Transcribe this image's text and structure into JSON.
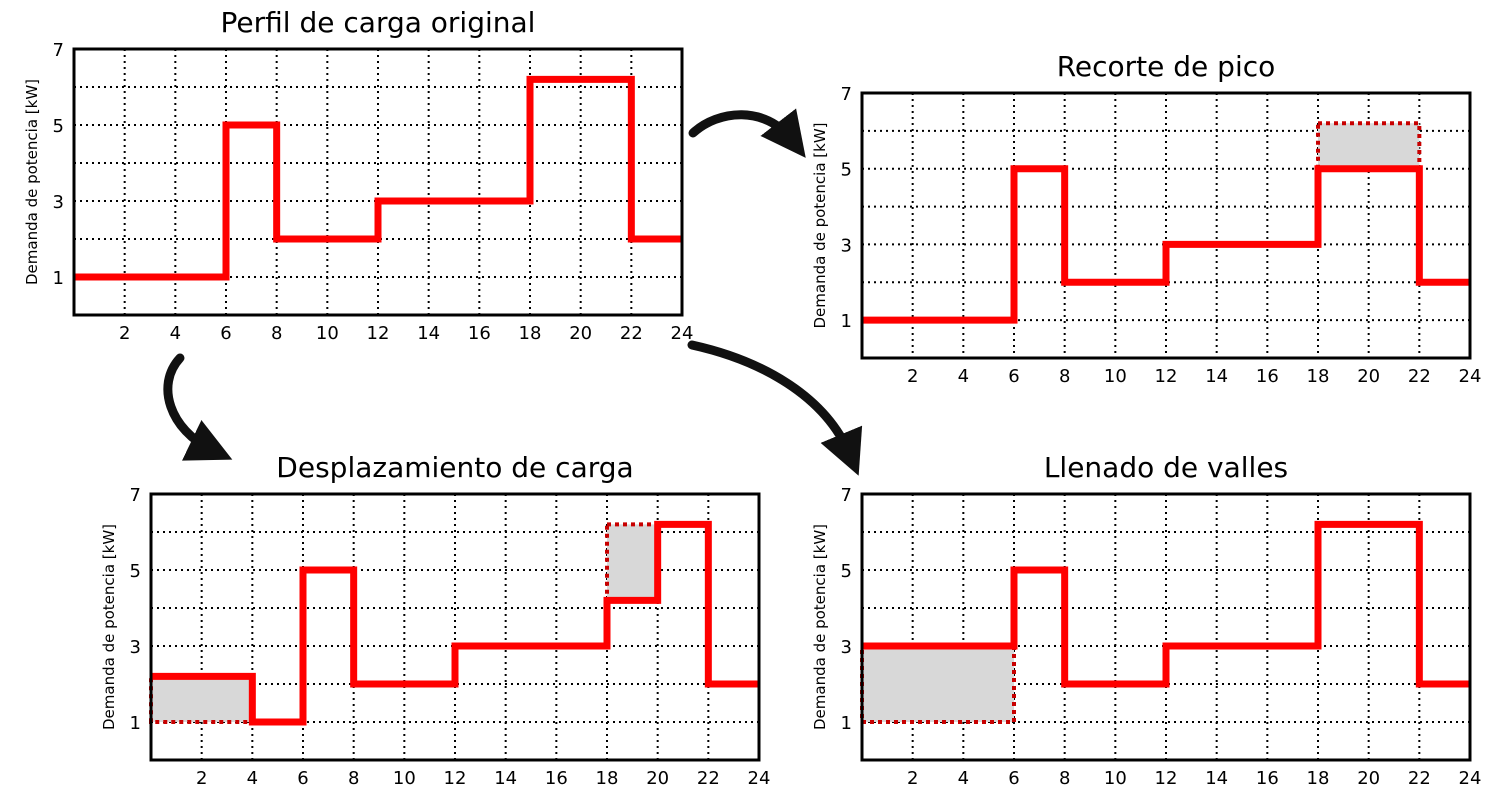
{
  "figure": {
    "colors": {
      "load": "#ff0000",
      "shade": "#d8d8d8",
      "shade_border": "#c80000",
      "grid": "#000000",
      "arrow": "#111111"
    },
    "arrows": [
      {
        "name": "arrow-to-peak-shaving",
        "icon": "curved-arrow-icon"
      },
      {
        "name": "arrow-to-load-shifting",
        "icon": "curved-arrow-icon"
      },
      {
        "name": "arrow-to-valley-filling",
        "icon": "curved-arrow-icon"
      }
    ]
  },
  "chart_data": [
    {
      "type": "line",
      "step": true,
      "title": "Perfil de carga original",
      "ylabel": "Demanda de potencia [kW]",
      "xlabel": "",
      "xlim": [
        0,
        24
      ],
      "ylim": [
        0,
        7
      ],
      "xticks": [
        "2",
        "4",
        "6",
        "8",
        "10",
        "12",
        "14",
        "16",
        "18",
        "20",
        "22",
        "24"
      ],
      "yticks": [
        "1",
        "3",
        "5",
        "7"
      ],
      "grid": true,
      "series": [
        {
          "x": [
            0,
            6,
            6,
            8,
            8,
            12,
            12,
            18,
            18,
            22,
            22,
            24
          ],
          "y": [
            1,
            1,
            5,
            5,
            2,
            2,
            3,
            3,
            6.2,
            6.2,
            2,
            2
          ]
        }
      ],
      "shaded": []
    },
    {
      "type": "line",
      "step": true,
      "title": "Recorte de pico",
      "ylabel": "Demanda de potencia [kW]",
      "xlabel": "",
      "xlim": [
        0,
        24
      ],
      "ylim": [
        0,
        7
      ],
      "xticks": [
        "2",
        "4",
        "6",
        "8",
        "10",
        "12",
        "14",
        "16",
        "18",
        "20",
        "22",
        "24"
      ],
      "yticks": [
        "1",
        "3",
        "5",
        "7"
      ],
      "grid": true,
      "series": [
        {
          "x": [
            0,
            6,
            6,
            8,
            8,
            12,
            12,
            18,
            18,
            22,
            22,
            24
          ],
          "y": [
            1,
            1,
            5,
            5,
            2,
            2,
            3,
            3,
            5,
            5,
            2,
            2
          ]
        }
      ],
      "shaded": [
        {
          "x0": 18,
          "x1": 22,
          "y0": 5,
          "y1": 6.2
        }
      ]
    },
    {
      "type": "line",
      "step": true,
      "title": "Desplazamiento de carga",
      "ylabel": "Demanda de potencia [kW]",
      "xlabel": "",
      "xlim": [
        0,
        24
      ],
      "ylim": [
        0,
        7
      ],
      "xticks": [
        "2",
        "4",
        "6",
        "8",
        "10",
        "12",
        "14",
        "16",
        "18",
        "20",
        "22",
        "24"
      ],
      "yticks": [
        "1",
        "3",
        "5",
        "7"
      ],
      "grid": true,
      "series": [
        {
          "x": [
            0,
            4,
            4,
            6,
            6,
            8,
            8,
            12,
            12,
            18,
            18,
            20,
            20,
            22,
            22,
            24
          ],
          "y": [
            2.2,
            2.2,
            1,
            1,
            5,
            5,
            2,
            2,
            3,
            3,
            4.2,
            4.2,
            6.2,
            6.2,
            2,
            2
          ]
        }
      ],
      "shaded": [
        {
          "x0": 0,
          "x1": 4,
          "y0": 1,
          "y1": 2.2
        },
        {
          "x0": 18,
          "x1": 20,
          "y0": 4.2,
          "y1": 6.2
        }
      ]
    },
    {
      "type": "line",
      "step": true,
      "title": "Llenado de valles",
      "ylabel": "Demanda de potencia [kW]",
      "xlabel": "",
      "xlim": [
        0,
        24
      ],
      "ylim": [
        0,
        7
      ],
      "xticks": [
        "2",
        "4",
        "6",
        "8",
        "10",
        "12",
        "14",
        "16",
        "18",
        "20",
        "22",
        "24"
      ],
      "yticks": [
        "1",
        "3",
        "5",
        "7"
      ],
      "grid": true,
      "series": [
        {
          "x": [
            0,
            6,
            6,
            8,
            8,
            12,
            12,
            18,
            18,
            22,
            22,
            24
          ],
          "y": [
            3,
            3,
            5,
            5,
            2,
            2,
            3,
            3,
            6.2,
            6.2,
            2,
            2
          ]
        }
      ],
      "shaded": [
        {
          "x0": 0,
          "x1": 6,
          "y0": 1,
          "y1": 3
        }
      ]
    }
  ]
}
